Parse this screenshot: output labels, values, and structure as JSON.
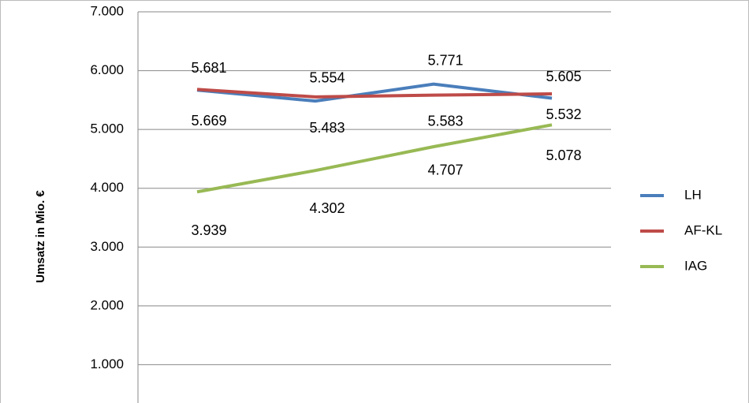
{
  "chart_data": {
    "type": "line",
    "y_label": "Umsatz in Mio. €",
    "categories": [
      null,
      null,
      null,
      null
    ],
    "series": [
      {
        "name": "LH",
        "color": "#4a7ebb",
        "label_color": "#3f6ea8",
        "values": [
          5669,
          5483,
          5771,
          5532
        ],
        "value_labels": [
          "5.669",
          "5.483",
          "5.771",
          "5.532"
        ]
      },
      {
        "name": "AF-KL",
        "color": "#be4b48",
        "label_color": "#c0504d",
        "values": [
          5681,
          5554,
          5583,
          5605
        ],
        "value_labels": [
          "5.681",
          "5.554",
          "5.583",
          "5.605"
        ]
      },
      {
        "name": "IAG",
        "color": "#98b954",
        "label_color": "#6f8a36",
        "values": [
          3939,
          4302,
          4707,
          5078
        ],
        "value_labels": [
          "3.939",
          "4.302",
          "4.707",
          "5.078"
        ]
      }
    ],
    "ylim": [
      0,
      7000
    ],
    "yticks": [
      {
        "value": 1000,
        "label": "1.000"
      },
      {
        "value": 2000,
        "label": "2.000"
      },
      {
        "value": 3000,
        "label": "3.000"
      },
      {
        "value": 4000,
        "label": "4.000"
      },
      {
        "value": 5000,
        "label": "5.000"
      },
      {
        "value": 6000,
        "label": "6.000"
      },
      {
        "value": 7000,
        "label": "7.000"
      }
    ],
    "grid": true,
    "legend": "right"
  }
}
